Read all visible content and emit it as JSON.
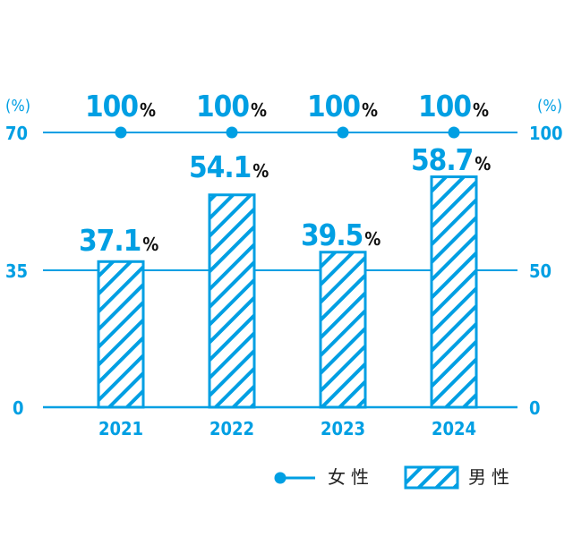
{
  "chart_data": {
    "type": "bar+line",
    "categories": [
      "2021",
      "2022",
      "2023",
      "2024"
    ],
    "series": [
      {
        "name": "女性",
        "type": "line",
        "axis": "right",
        "values": [
          100,
          100,
          100,
          100
        ],
        "labels": [
          "100",
          "100",
          "100",
          "100"
        ]
      },
      {
        "name": "男性",
        "type": "bar",
        "axis": "left",
        "values": [
          37.1,
          54.1,
          39.5,
          58.7
        ],
        "labels": [
          "37.1",
          "54.1",
          "39.5",
          "58.7"
        ]
      }
    ],
    "left_axis": {
      "unit": "(%)",
      "ticks": [
        "70",
        "35",
        "0"
      ],
      "range": [
        0,
        70
      ]
    },
    "right_axis": {
      "unit": "(%)",
      "ticks": [
        "100",
        "50",
        "0"
      ],
      "range": [
        0,
        100
      ]
    },
    "value_suffix": "%",
    "legend": [
      {
        "label": "女性",
        "marker": "line-dot"
      },
      {
        "label": "男性",
        "marker": "hatched-box"
      }
    ],
    "grid": true,
    "legend_position": "bottom-right"
  },
  "colors": {
    "accent": "#009fe3",
    "text": "#111111"
  }
}
